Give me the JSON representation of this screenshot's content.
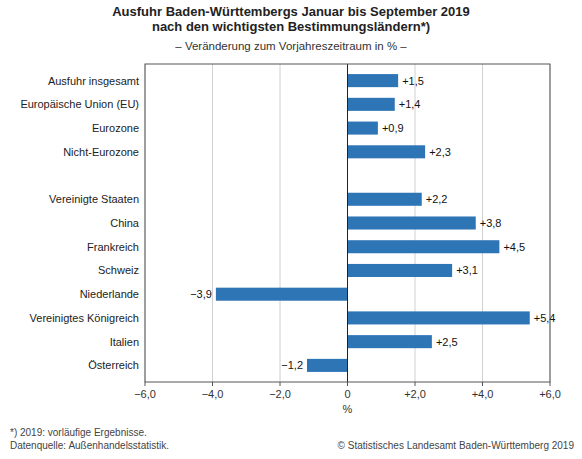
{
  "chart_data": {
    "type": "bar",
    "orientation": "horizontal",
    "title": "Ausfuhr Baden-Württembergs Januar bis September 2019\nnach den wichtigsten Bestimmungsländern*)",
    "subtitle": "– Veränderung zum Vorjahreszeitraum in % –",
    "categories": [
      "Österreich",
      "Italien",
      "Vereinigtes Königreich",
      "Niederlande",
      "Schweiz",
      "Frankreich",
      "China",
      "Vereinigte Staaten",
      null,
      "Nicht-Eurozone",
      "Eurozone",
      "Europäische Union (EU)",
      "Ausfuhr insgesamt"
    ],
    "values": [
      -1.2,
      2.5,
      5.4,
      -3.9,
      3.1,
      4.5,
      3.8,
      2.2,
      null,
      2.3,
      0.9,
      1.4,
      1.5
    ],
    "value_labels": [
      "−1,2",
      "+2,5",
      "+5,4",
      "−3,9",
      "+3,1",
      "+4,5",
      "+3,8",
      "+2,2",
      null,
      "+2,3",
      "+0,9",
      "+1,4",
      "+1,5"
    ],
    "data_labels": true,
    "color": "#2E75B6",
    "xlim": [
      -6.0,
      6.0
    ],
    "xticks": [
      {
        "value": -6.0,
        "label": "−6,0"
      },
      {
        "value": -4.0,
        "label": "−4,0"
      },
      {
        "value": -2.0,
        "label": "−2,0"
      },
      0,
      {
        "value": 2.0,
        "label": "+2,0"
      },
      {
        "value": 4.0,
        "label": "+4,0"
      },
      {
        "value": 6.0,
        "label": "+6,0"
      }
    ],
    "xlabel": "%",
    "grid": true,
    "annotations": [
      "*) 2019: vorläufige Ergebnisse.\nDatenquelle: Außenhandelsstatistik.",
      "© Statistisches Landesamt Baden-Württemberg 2019"
    ]
  }
}
